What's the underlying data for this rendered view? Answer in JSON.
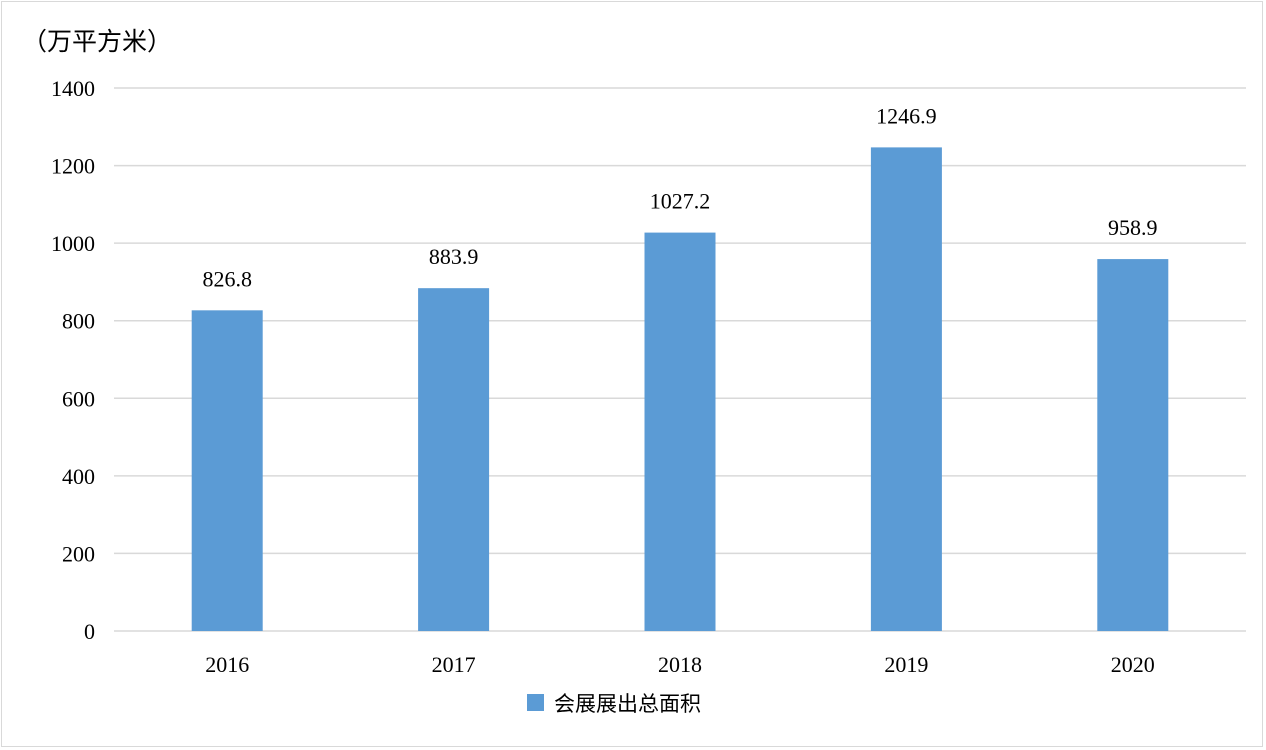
{
  "chart_data": {
    "type": "bar",
    "unit_label": "（万平方米）",
    "categories": [
      "2016",
      "2017",
      "2018",
      "2019",
      "2020"
    ],
    "series": [
      {
        "name": "会展展出总面积",
        "color": "#5b9bd5",
        "values": [
          826.8,
          883.9,
          1027.2,
          1246.9,
          958.9
        ],
        "labels": [
          "826.8",
          "883.9",
          "1027.2",
          "1246.9",
          "958.9"
        ]
      }
    ],
    "ylim": [
      0,
      1400
    ],
    "yticks": [
      "0",
      "200",
      "400",
      "600",
      "800",
      "1000",
      "1200",
      "1400"
    ],
    "grid": true,
    "legend_position": "bottom"
  }
}
